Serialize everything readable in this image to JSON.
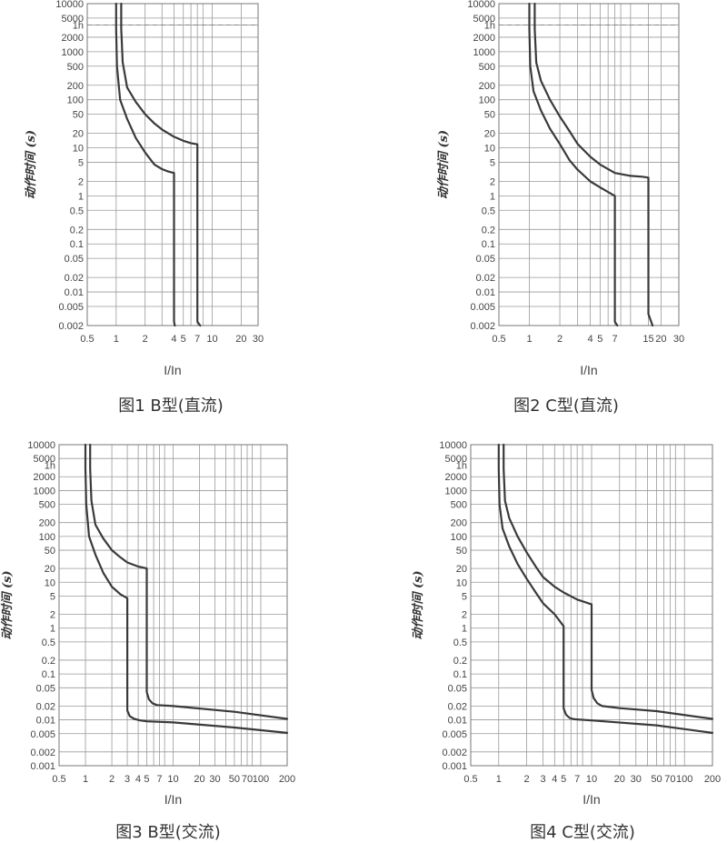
{
  "chart_data": [
    {
      "id": "fig1",
      "type": "line",
      "caption": "图1  B型(直流)",
      "xlabel": "I/In",
      "ylabel": "动作时间 (s)",
      "xscale": "log",
      "yscale": "log",
      "xlim": [
        0.5,
        30
      ],
      "ylim": [
        0.002,
        10000
      ],
      "x_ticks": [
        0.5,
        1,
        2,
        4,
        5,
        7,
        10,
        20,
        30
      ],
      "x_tick_labels": [
        "0.5",
        "1",
        "2",
        "4",
        "5",
        "7",
        "10",
        "20",
        "30"
      ],
      "x_grid": [
        0.5,
        1,
        2,
        3,
        4,
        5,
        6,
        7,
        8,
        10,
        20,
        30
      ],
      "y_ticks": [
        10000,
        5000,
        3600,
        2000,
        1000,
        500,
        200,
        100,
        50,
        20,
        10,
        5,
        2,
        1,
        0.5,
        0.2,
        0.1,
        0.05,
        0.02,
        0.01,
        0.005,
        0.002
      ],
      "y_tick_labels": [
        "10000",
        "5000",
        "1h",
        "2000",
        "1000",
        "500",
        "200",
        "100",
        "50",
        "20",
        "10",
        "5",
        "2",
        "1",
        "0.5",
        "0.2",
        "0.1",
        "0.05",
        "0.02",
        "0.01",
        "0.005",
        "0.002"
      ],
      "y_grid": [
        10000,
        5000,
        3600,
        2000,
        1000,
        500,
        200,
        100,
        50,
        20,
        10,
        5,
        2,
        1,
        0.5,
        0.2,
        0.1,
        0.05,
        0.02,
        0.01,
        0.005,
        0.002
      ],
      "hour_line": 3600,
      "grid": true,
      "legend": "none",
      "series": [
        {
          "x": [
            1.0,
            1.0,
            1.02,
            1.1,
            1.3,
            1.6,
            2.0,
            2.5,
            3.0,
            3.5,
            4.0,
            4.0,
            4.08
          ],
          "y": [
            10000,
            3000,
            500,
            100,
            40,
            16,
            8,
            4.5,
            3.6,
            3.2,
            3.0,
            0.0024,
            0.002
          ]
        },
        {
          "x": [
            1.13,
            1.13,
            1.17,
            1.3,
            1.6,
            2.0,
            2.5,
            3.0,
            4.0,
            5.0,
            6.0,
            7.0,
            7.0,
            7.5
          ],
          "y": [
            10000,
            3000,
            600,
            180,
            90,
            50,
            32,
            24,
            17,
            14,
            12.5,
            11.8,
            0.0024,
            0.002
          ]
        }
      ]
    },
    {
      "id": "fig2",
      "type": "line",
      "caption": "图2  C型(直流)",
      "xlabel": "I/In",
      "ylabel": "动作时间 (s)",
      "xscale": "log",
      "yscale": "log",
      "xlim": [
        0.5,
        30
      ],
      "ylim": [
        0.002,
        10000
      ],
      "x_ticks": [
        0.5,
        1,
        2,
        4,
        5,
        7,
        15,
        20,
        30
      ],
      "x_tick_labels": [
        "0.5",
        "1",
        "2",
        "4",
        "5",
        "7",
        "15",
        "20",
        "30"
      ],
      "x_grid": [
        0.5,
        1,
        2,
        3,
        4,
        5,
        6,
        7,
        8,
        10,
        15,
        20,
        30
      ],
      "y_ticks": [
        10000,
        5000,
        3600,
        2000,
        1000,
        500,
        200,
        100,
        50,
        20,
        10,
        5,
        2,
        1,
        0.5,
        0.2,
        0.1,
        0.05,
        0.02,
        0.01,
        0.005,
        0.002
      ],
      "y_tick_labels": [
        "10000",
        "5000",
        "1h",
        "2000",
        "1000",
        "500",
        "200",
        "100",
        "50",
        "20",
        "10",
        "5",
        "2",
        "1",
        "0.5",
        "0.2",
        "0.1",
        "0.05",
        "0.02",
        "0.01",
        "0.005",
        "0.002"
      ],
      "y_grid": [
        10000,
        5000,
        3600,
        2000,
        1000,
        500,
        200,
        100,
        50,
        20,
        10,
        5,
        2,
        1,
        0.5,
        0.2,
        0.1,
        0.05,
        0.02,
        0.01,
        0.005,
        0.002
      ],
      "hour_line": 3600,
      "grid": true,
      "legend": "none",
      "series": [
        {
          "x": [
            1.0,
            1.0,
            1.02,
            1.1,
            1.3,
            1.6,
            2.0,
            2.5,
            3.0,
            4.0,
            5.0,
            6.0,
            7.0,
            7.0,
            7.4
          ],
          "y": [
            10000,
            3000,
            500,
            150,
            60,
            25,
            12,
            5.5,
            3.5,
            2.0,
            1.5,
            1.2,
            1.0,
            0.0024,
            0.002
          ]
        },
        {
          "x": [
            1.13,
            1.13,
            1.17,
            1.3,
            1.6,
            2.0,
            2.5,
            3.0,
            4.0,
            5.0,
            7.0,
            10.0,
            13.0,
            15.0,
            15.0,
            16.5
          ],
          "y": [
            10000,
            3000,
            600,
            250,
            100,
            45,
            22,
            12,
            6.5,
            4.5,
            3.0,
            2.6,
            2.5,
            2.4,
            0.0035,
            0.002
          ]
        }
      ]
    },
    {
      "id": "fig3",
      "type": "line",
      "caption": "图3  B型(交流)",
      "xlabel": "I/In",
      "ylabel": "动作时间 (s)",
      "xscale": "log",
      "yscale": "log",
      "xlim": [
        0.5,
        200
      ],
      "ylim": [
        0.001,
        10000
      ],
      "x_ticks": [
        0.5,
        1,
        2,
        3,
        4,
        5,
        7,
        10,
        20,
        30,
        50,
        70,
        100,
        200
      ],
      "x_tick_labels": [
        "0.5",
        "1",
        "2",
        "3",
        "4",
        "5",
        "7",
        "10",
        "20",
        "30",
        "50",
        "70",
        "100",
        "200"
      ],
      "x_grid": [
        0.5,
        1,
        2,
        3,
        4,
        5,
        6,
        7,
        8,
        10,
        20,
        30,
        40,
        50,
        60,
        70,
        80,
        100,
        200
      ],
      "y_ticks": [
        10000,
        5000,
        3600,
        2000,
        1000,
        500,
        200,
        100,
        50,
        20,
        10,
        5,
        2,
        1,
        0.5,
        0.2,
        0.1,
        0.05,
        0.02,
        0.01,
        0.005,
        0.002,
        0.001
      ],
      "y_tick_labels": [
        "10000",
        "5000",
        "1h",
        "2000",
        "1000",
        "500",
        "200",
        "100",
        "50",
        "20",
        "10",
        "5",
        "2",
        "1",
        "0.5",
        "0.2",
        "0.1",
        "0.05",
        "0.02",
        "0.01",
        "0.005",
        "0.002",
        "0.001"
      ],
      "y_grid": [
        10000,
        5000,
        2000,
        1000,
        500,
        200,
        100,
        50,
        20,
        10,
        5,
        2,
        1,
        0.5,
        0.2,
        0.1,
        0.05,
        0.02,
        0.01,
        0.005,
        0.002,
        0.001
      ],
      "grid": true,
      "legend": "none",
      "series": [
        {
          "x": [
            1.0,
            1.0,
            1.02,
            1.1,
            1.3,
            1.6,
            2.0,
            2.5,
            3.0,
            3.0,
            3.2,
            3.6,
            4.2,
            5.0,
            10.0,
            50.0,
            200.0
          ],
          "y": [
            10000,
            3000,
            500,
            100,
            40,
            16,
            8,
            5.5,
            4.5,
            0.016,
            0.012,
            0.0105,
            0.0097,
            0.0093,
            0.0088,
            0.0068,
            0.0052
          ]
        },
        {
          "x": [
            1.13,
            1.13,
            1.17,
            1.3,
            1.6,
            2.0,
            2.5,
            3.0,
            4.0,
            5.0,
            5.0,
            5.3,
            5.8,
            6.5,
            10.0,
            50.0,
            200.0
          ],
          "y": [
            10000,
            3000,
            600,
            180,
            90,
            50,
            35,
            27,
            22,
            20,
            0.04,
            0.028,
            0.023,
            0.021,
            0.02,
            0.015,
            0.0105
          ]
        }
      ]
    },
    {
      "id": "fig4",
      "type": "line",
      "caption": "图4  C型(交流)",
      "xlabel": "I/In",
      "ylabel": "动作时间 (s)",
      "xscale": "log",
      "yscale": "log",
      "xlim": [
        0.5,
        200
      ],
      "ylim": [
        0.001,
        10000
      ],
      "x_ticks": [
        0.5,
        1,
        2,
        3,
        4,
        5,
        7,
        10,
        20,
        30,
        50,
        70,
        100,
        200
      ],
      "x_tick_labels": [
        "0.5",
        "1",
        "2",
        "3",
        "4",
        "5",
        "7",
        "10",
        "20",
        "30",
        "50",
        "70",
        "100",
        "200"
      ],
      "x_grid": [
        0.5,
        1,
        2,
        3,
        4,
        5,
        6,
        7,
        8,
        10,
        20,
        30,
        40,
        50,
        60,
        70,
        80,
        100,
        200
      ],
      "y_ticks": [
        10000,
        5000,
        3600,
        2000,
        1000,
        500,
        200,
        100,
        50,
        20,
        10,
        5,
        2,
        1,
        0.5,
        0.2,
        0.1,
        0.05,
        0.02,
        0.01,
        0.005,
        0.002,
        0.001
      ],
      "y_tick_labels": [
        "10000",
        "5000",
        "1h",
        "2000",
        "1000",
        "500",
        "200",
        "100",
        "50",
        "20",
        "10",
        "5",
        "2",
        "1",
        "0.5",
        "0.2",
        "0.1",
        "0.05",
        "0.02",
        "0.01",
        "0.005",
        "0.002",
        "0.001"
      ],
      "y_grid": [
        10000,
        5000,
        2000,
        1000,
        500,
        200,
        100,
        50,
        20,
        10,
        5,
        2,
        1,
        0.5,
        0.2,
        0.1,
        0.05,
        0.02,
        0.01,
        0.005,
        0.002,
        0.001
      ],
      "grid": true,
      "legend": "none",
      "series": [
        {
          "x": [
            1.0,
            1.0,
            1.02,
            1.1,
            1.3,
            1.6,
            2.0,
            2.5,
            3.0,
            4.0,
            5.0,
            5.0,
            5.3,
            5.8,
            6.5,
            10.0,
            50.0,
            200.0
          ],
          "y": [
            10000,
            3000,
            500,
            150,
            60,
            25,
            12,
            6,
            3.5,
            2.0,
            1.1,
            0.018,
            0.013,
            0.011,
            0.0103,
            0.0097,
            0.0076,
            0.0052
          ]
        },
        {
          "x": [
            1.13,
            1.13,
            1.17,
            1.3,
            1.6,
            2.0,
            2.5,
            3.0,
            4.0,
            5.0,
            7.0,
            10.0,
            10.0,
            10.5,
            11.5,
            13.0,
            20.0,
            50.0,
            200.0
          ],
          "y": [
            10000,
            3000,
            600,
            250,
            100,
            45,
            22,
            13,
            8,
            6,
            4.2,
            3.3,
            0.045,
            0.03,
            0.023,
            0.02,
            0.018,
            0.0155,
            0.0105
          ]
        }
      ]
    }
  ]
}
